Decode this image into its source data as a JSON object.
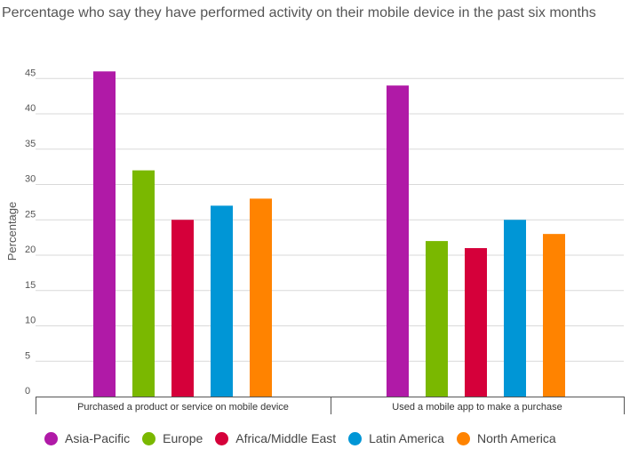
{
  "chart_data": {
    "type": "bar",
    "title": "Percentage who say they have performed activity on their mobile device in the past six months",
    "ylabel": "Percentage",
    "xlabel": "",
    "ylim": [
      0,
      45
    ],
    "yticks": [
      0,
      5,
      10,
      15,
      20,
      25,
      30,
      35,
      40,
      45
    ],
    "grid": true,
    "legend_position": "bottom",
    "categories": [
      "Purchased a product or service on mobile device",
      "Used a mobile app to make a purchase"
    ],
    "series": [
      {
        "name": "Asia-Pacific",
        "color": "#b01aa7",
        "values": [
          46,
          44
        ]
      },
      {
        "name": "Europe",
        "color": "#7ab800",
        "values": [
          32,
          22
        ]
      },
      {
        "name": "Africa/Middle East",
        "color": "#d5003a",
        "values": [
          25,
          21
        ]
      },
      {
        "name": "Latin America",
        "color": "#0096d6",
        "values": [
          27,
          25
        ]
      },
      {
        "name": "North America",
        "color": "#ff8300",
        "values": [
          28,
          23
        ]
      }
    ]
  }
}
